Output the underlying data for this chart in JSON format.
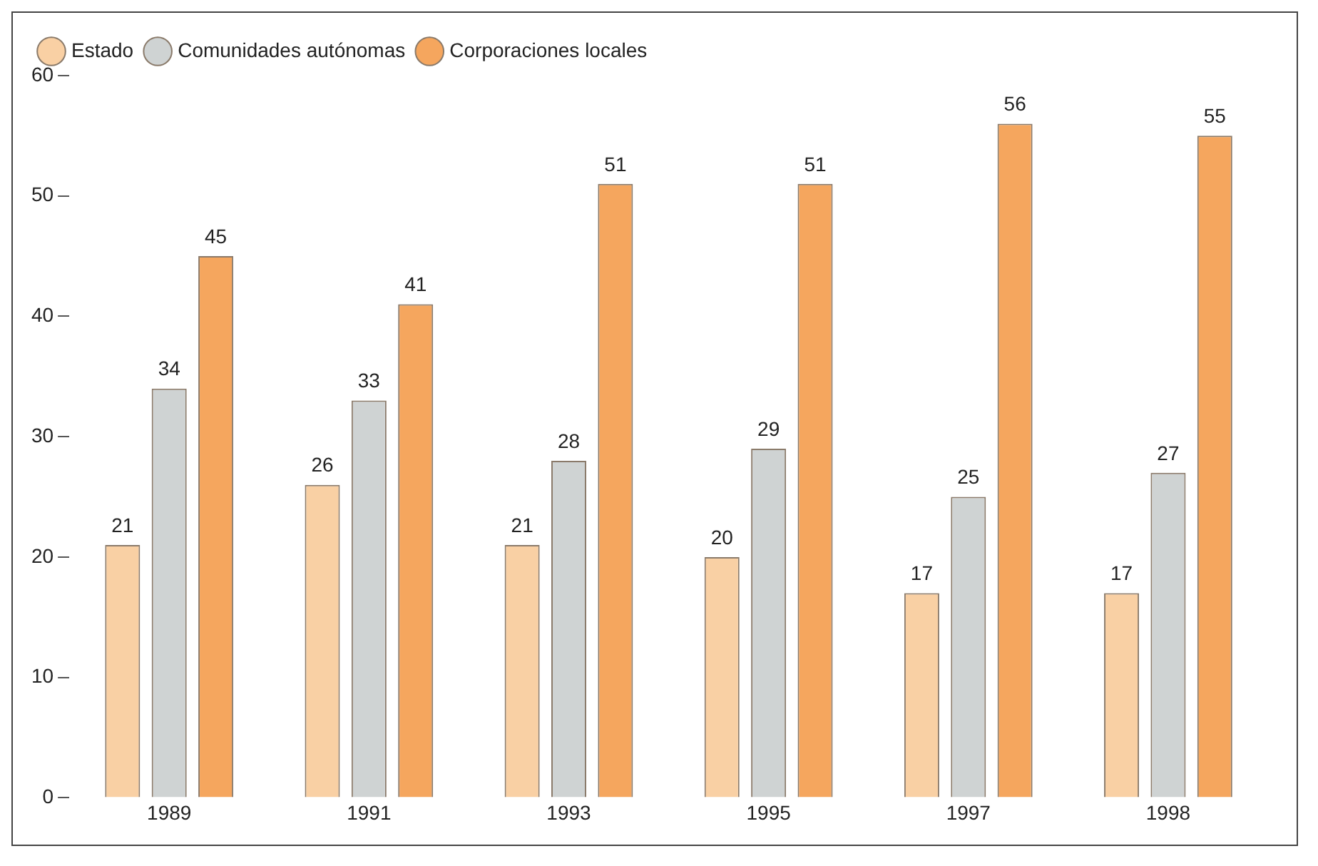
{
  "chart_data": {
    "type": "bar",
    "categories": [
      "1989",
      "1991",
      "1993",
      "1995",
      "1997",
      "1998"
    ],
    "series": [
      {
        "name": "Estado",
        "color": "#f9d0a4",
        "values": [
          21,
          26,
          21,
          20,
          17,
          17
        ]
      },
      {
        "name": "Comunidades autónomas",
        "color": "#cfd3d3",
        "values": [
          34,
          33,
          28,
          29,
          25,
          27
        ]
      },
      {
        "name": "Corporaciones locales",
        "color": "#f5a65e",
        "values": [
          45,
          41,
          51,
          51,
          56,
          55
        ]
      }
    ],
    "ylim": [
      0,
      60
    ],
    "yticks": [
      0,
      10,
      20,
      30,
      40,
      50,
      60
    ],
    "grid": false,
    "legend": "top left",
    "data_labels": true
  }
}
